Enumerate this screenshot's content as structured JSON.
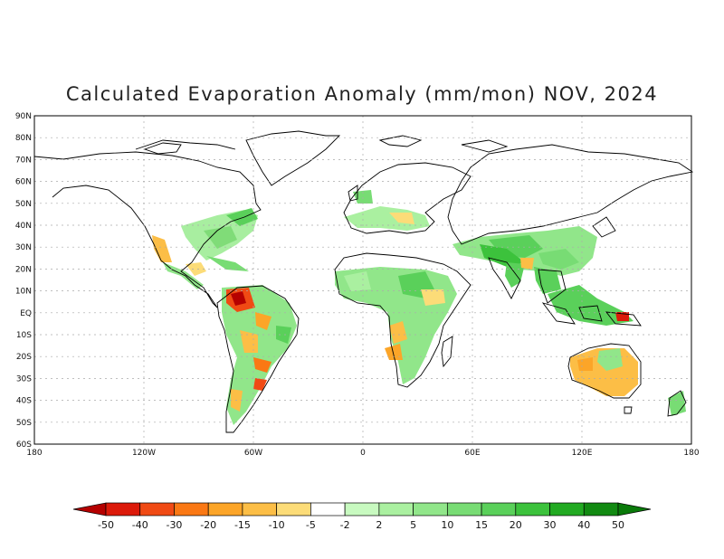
{
  "title": "Calculated Evaporation Anomaly (mm/mon) NOV, 2024",
  "map": {
    "lat_labels": [
      "90N",
      "80N",
      "70N",
      "60N",
      "50N",
      "40N",
      "30N",
      "20N",
      "10N",
      "EQ",
      "10S",
      "20S",
      "30S",
      "40S",
      "50S",
      "60S"
    ],
    "lon_labels": [
      "180",
      "120W",
      "60W",
      "0",
      "60E",
      "120E",
      "180"
    ]
  },
  "colorbar": {
    "labels": [
      "-50",
      "-40",
      "-30",
      "-20",
      "-15",
      "-10",
      "-5",
      "-2",
      "2",
      "5",
      "10",
      "15",
      "20",
      "30",
      "40",
      "50"
    ],
    "colors": [
      "#b50000",
      "#dc1a0a",
      "#f04a14",
      "#fa7814",
      "#fca528",
      "#fcbe46",
      "#fcdc78",
      "#ffffff",
      "#c8fac0",
      "#aaf0a0",
      "#91e68a",
      "#78dc74",
      "#5ad05a",
      "#3cc23c",
      "#22aa22",
      "#128a12",
      "#0a7a0a"
    ]
  }
}
